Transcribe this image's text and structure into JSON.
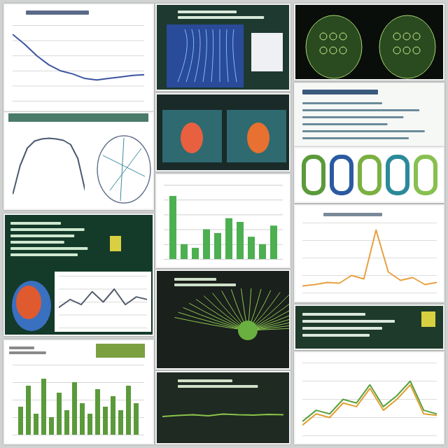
{
  "chart_data": [
    {
      "type": "line",
      "x": [
        0,
        1,
        2,
        3,
        4,
        5,
        6,
        7,
        8,
        9,
        10,
        11
      ],
      "values": [
        88,
        75,
        60,
        48,
        40,
        36,
        30,
        28,
        30,
        32,
        34,
        35
      ],
      "color": "#3b55a0",
      "xlim": [
        0,
        11
      ],
      "ylim": [
        0,
        100
      ],
      "yticks": [
        0,
        20,
        40,
        60,
        80,
        100
      ],
      "grid": true,
      "tick_labels": false
    },
    {
      "type": "line",
      "x": [
        0,
        1,
        2,
        3,
        4,
        5,
        6,
        7,
        8,
        9,
        10
      ],
      "values": [
        10,
        50,
        75,
        85,
        88,
        89,
        88,
        86,
        80,
        60,
        15
      ],
      "color": "#4a5a70",
      "xlim": [
        0,
        10
      ],
      "ylim": [
        0,
        100
      ],
      "yticks": [
        0,
        100
      ],
      "grid": false,
      "tick_labels": false
    },
    {
      "type": "line",
      "x": [
        0,
        1,
        2,
        3,
        4,
        5,
        6,
        7,
        8
      ],
      "values": [
        40,
        55,
        45,
        70,
        50,
        75,
        45,
        60,
        55
      ],
      "color": "#555e6e",
      "xlim": [
        0,
        8
      ],
      "ylim": [
        0,
        100
      ],
      "yticks": [
        0,
        25,
        50,
        75,
        100
      ],
      "grid": true,
      "tick_labels": false
    },
    {
      "type": "bar",
      "categories": [
        null,
        null,
        null,
        null,
        null,
        null,
        null,
        null,
        null,
        null,
        null,
        null,
        null,
        null,
        null,
        null
      ],
      "values": [
        40,
        70,
        30,
        80,
        25,
        60,
        35,
        75,
        45,
        30,
        65,
        40,
        55,
        35,
        70,
        45
      ],
      "color": "#5a9a3a",
      "ylim": [
        0,
        100
      ],
      "yticks": [
        0,
        25,
        50,
        75,
        100
      ],
      "grid": true,
      "tick_labels": false
    },
    {
      "type": "bar",
      "categories": [
        null,
        null,
        null,
        null,
        null,
        null,
        null,
        null,
        null,
        null
      ],
      "values": [
        85,
        20,
        15,
        40,
        35,
        55,
        50,
        30,
        20,
        45
      ],
      "color": "#4caf50",
      "ylim": [
        0,
        100
      ],
      "yticks": [
        0,
        20,
        40,
        60,
        80,
        100
      ],
      "grid": true,
      "tick_labels": false
    },
    {
      "type": "line",
      "x": [
        0,
        1,
        2,
        3,
        4,
        5,
        6,
        7,
        8
      ],
      "values": [
        45,
        48,
        50,
        47,
        52,
        50,
        49,
        51,
        50
      ],
      "color": "#8bc34a",
      "xlim": [
        0,
        8
      ],
      "ylim": [
        0,
        100
      ],
      "yticks": [
        0,
        100
      ],
      "grid": false,
      "tick_labels": false
    },
    {
      "type": "line",
      "x": [
        0,
        1,
        2,
        3,
        4,
        5,
        6,
        7,
        8,
        9,
        10,
        11
      ],
      "values": [
        10,
        12,
        15,
        14,
        25,
        20,
        90,
        30,
        18,
        22,
        12,
        15
      ],
      "color": "#e8a040",
      "xlim": [
        0,
        11
      ],
      "ylim": [
        0,
        100
      ],
      "yticks": [
        0,
        25,
        50,
        75,
        100
      ],
      "grid": true,
      "tick_labels": false
    },
    {
      "type": "line",
      "x": [
        0,
        1,
        2,
        3,
        4,
        5,
        6,
        7,
        8,
        9,
        10
      ],
      "xlim": [
        0,
        10
      ],
      "ylim": [
        0,
        100
      ],
      "yticks": [
        0,
        25,
        50,
        75,
        100
      ],
      "grid": true,
      "tick_labels": false,
      "series": [
        {
          "color": "#5aa040",
          "values": [
            20,
            35,
            30,
            50,
            45,
            70,
            40,
            55,
            75,
            35,
            30
          ]
        },
        {
          "color": "#e0a030",
          "values": [
            15,
            30,
            25,
            45,
            40,
            65,
            35,
            50,
            70,
            30,
            28
          ]
        }
      ]
    }
  ]
}
